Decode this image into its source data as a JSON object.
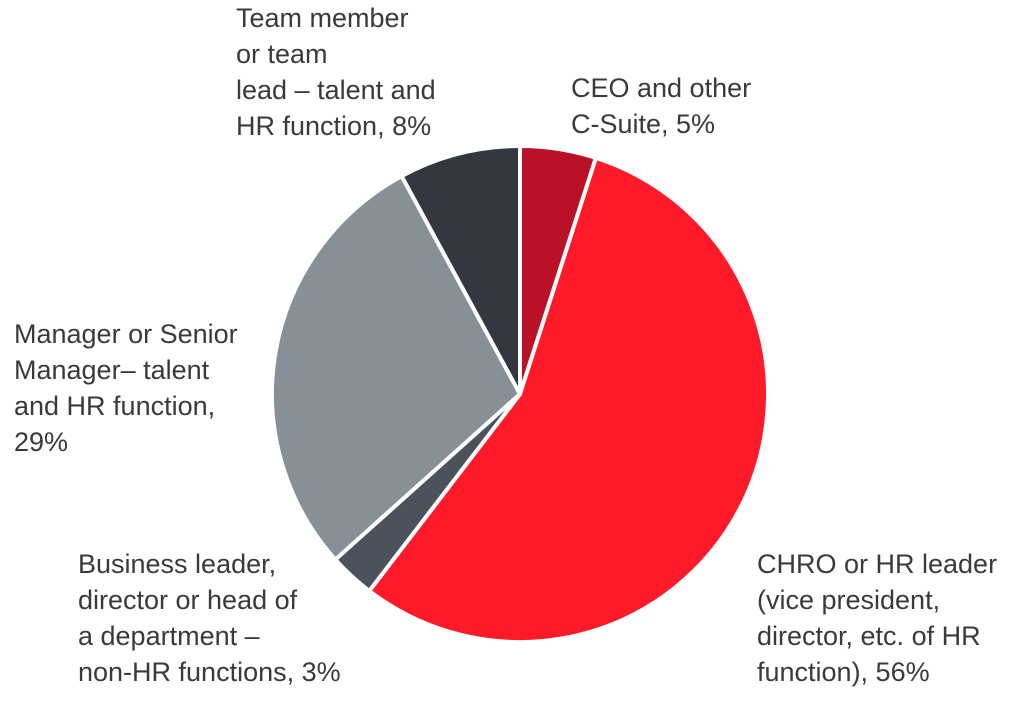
{
  "chart_data": {
    "type": "pie",
    "title": "",
    "start_angle_deg": 0,
    "direction": "clockwise",
    "slices": [
      {
        "label": "CEO and other C-Suite, 5%",
        "value": 5,
        "color": "#bb1126"
      },
      {
        "label": "CHRO or HR leader (vice president, director, etc. of HR function), 56%",
        "value": 56,
        "color": "#ff1a2a"
      },
      {
        "label": "Business leader, director or head of a department – non-HR functions, 3%",
        "value": 3,
        "color": "#4b525b"
      },
      {
        "label": "Manager or Senior Manager– talent and HR function, 29%",
        "value": 29,
        "color": "#879096"
      },
      {
        "label": "Team member or team lead – talent and HR function, 8%",
        "value": 8,
        "color": "#333840"
      }
    ]
  },
  "labels": {
    "team_member": "Team member\nor team\nlead – talent and\nHR function, 8%",
    "ceo": "CEO and other\nC-Suite, 5%",
    "manager": "Manager or Senior\nManager– talent\nand HR function,\n29%",
    "business": "Business leader,\ndirector or head of\na department –\nnon-HR functions, 3%",
    "chro": "CHRO or HR leader\n(vice president,\ndirector, etc. of HR\nfunction), 56%"
  }
}
